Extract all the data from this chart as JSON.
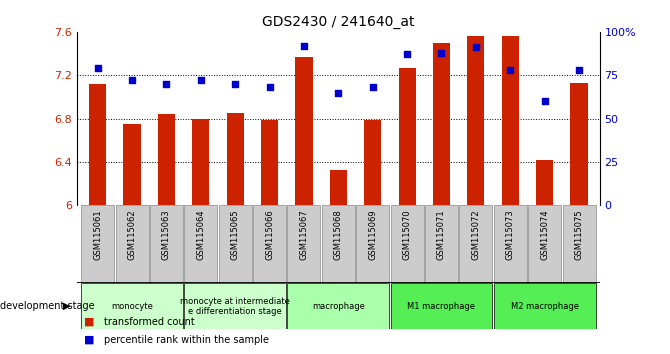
{
  "title": "GDS2430 / 241640_at",
  "samples": [
    "GSM115061",
    "GSM115062",
    "GSM115063",
    "GSM115064",
    "GSM115065",
    "GSM115066",
    "GSM115067",
    "GSM115068",
    "GSM115069",
    "GSM115070",
    "GSM115071",
    "GSM115072",
    "GSM115073",
    "GSM115074",
    "GSM115075"
  ],
  "bar_values": [
    7.12,
    6.75,
    6.84,
    6.8,
    6.85,
    6.79,
    7.37,
    6.33,
    6.79,
    7.27,
    7.5,
    7.56,
    7.56,
    6.42,
    7.13
  ],
  "scatter_values": [
    79,
    72,
    70,
    72,
    70,
    68,
    92,
    65,
    68,
    87,
    88,
    91,
    78,
    60,
    78
  ],
  "ylim_left": [
    6.0,
    7.6
  ],
  "ylim_right": [
    0,
    100
  ],
  "yticks_left": [
    6.0,
    6.4,
    6.8,
    7.2,
    7.6
  ],
  "ytick_labels_left": [
    "6",
    "6.4",
    "6.8",
    "7.2",
    "7.6"
  ],
  "yticks_right": [
    0,
    25,
    50,
    75,
    100
  ],
  "ytick_labels_right": [
    "0",
    "25",
    "50",
    "75",
    "100%"
  ],
  "bar_color": "#cc2200",
  "scatter_color": "#0000cc",
  "bar_width": 0.5,
  "group_defs": [
    {
      "label": "monocyte",
      "indices": [
        0,
        1,
        2
      ],
      "color": "#ccffcc"
    },
    {
      "label": "monocyte at intermediate\ne differentiation stage",
      "indices": [
        3,
        4,
        5
      ],
      "color": "#ccffcc"
    },
    {
      "label": "macrophage",
      "indices": [
        6,
        7,
        8
      ],
      "color": "#aaffaa"
    },
    {
      "label": "M1 macrophage",
      "indices": [
        9,
        10,
        11
      ],
      "color": "#55ee55"
    },
    {
      "label": "M2 macrophage",
      "indices": [
        12,
        13,
        14
      ],
      "color": "#55ee55"
    }
  ],
  "sample_box_color": "#cccccc",
  "dev_stage_label": "development stage",
  "legend_bar": "transformed count",
  "legend_scatter": "percentile rank within the sample",
  "tick_color_left": "#cc2200",
  "tick_color_right": "#0000cc"
}
